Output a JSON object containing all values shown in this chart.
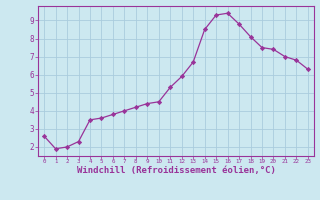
{
  "x": [
    0,
    1,
    2,
    3,
    4,
    5,
    6,
    7,
    8,
    9,
    10,
    11,
    12,
    13,
    14,
    15,
    16,
    17,
    18,
    19,
    20,
    21,
    22,
    23
  ],
  "y": [
    2.6,
    1.9,
    2.0,
    2.3,
    3.5,
    3.6,
    3.8,
    4.0,
    4.2,
    4.4,
    4.5,
    5.3,
    5.9,
    6.7,
    8.5,
    9.3,
    9.4,
    8.8,
    8.1,
    7.5,
    7.4,
    7.0,
    6.8,
    6.3
  ],
  "line_color": "#993399",
  "marker": "D",
  "markersize": 2.2,
  "linewidth": 0.9,
  "xlabel": "Windchill (Refroidissement éolien,°C)",
  "xlabel_fontsize": 6.5,
  "bg_color": "#cce8f0",
  "grid_color": "#aaccdd",
  "axis_color": "#993399",
  "tick_color": "#993399",
  "label_color": "#993399",
  "ylim": [
    1.5,
    9.8
  ],
  "xlim": [
    -0.5,
    23.5
  ],
  "yticks": [
    2,
    3,
    4,
    5,
    6,
    7,
    8,
    9
  ],
  "xticks": [
    0,
    1,
    2,
    3,
    4,
    5,
    6,
    7,
    8,
    9,
    10,
    11,
    12,
    13,
    14,
    15,
    16,
    17,
    18,
    19,
    20,
    21,
    22,
    23
  ]
}
